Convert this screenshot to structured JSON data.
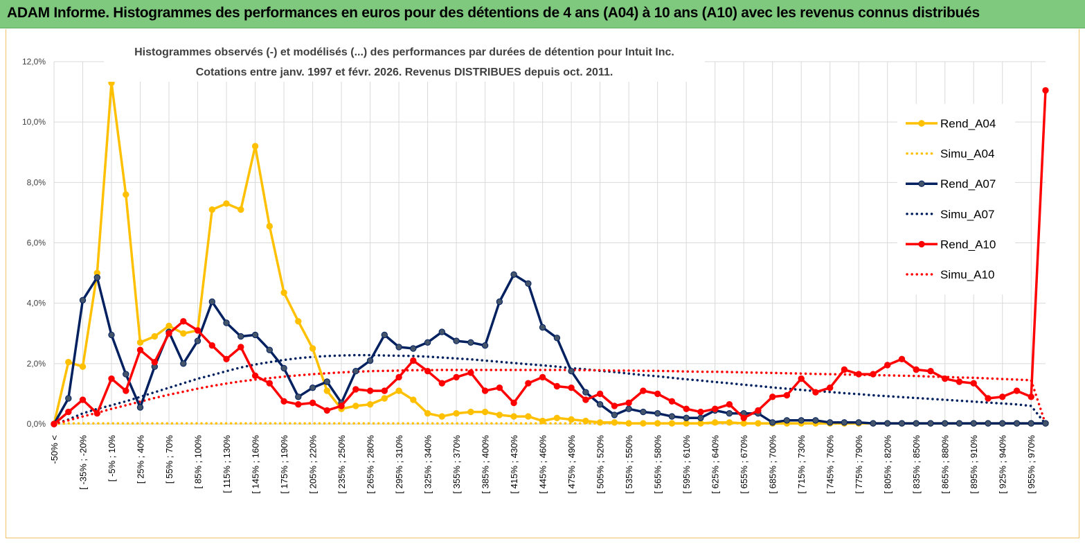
{
  "banner": {
    "title": "ADAM Informe. Histogrammes des performances en euros pour des détentions de 4 ans (A04) à 10 ans (A10) avec les revenus connus distribués"
  },
  "chart_data": {
    "type": "line",
    "title": [
      "Histogrammes observés (-) et modélisés (...) des performances par durées de détention pour Intuit Inc.",
      "Cotations entre janv. 1997 et févr. 2026. Revenus DISTRIBUES depuis oct. 2011."
    ],
    "ylim": [
      0,
      12
    ],
    "y_ticks": [
      "0,0%",
      "2,0%",
      "4,0%",
      "6,0%",
      "8,0%",
      "10,0%",
      "12,0%"
    ],
    "grid": true,
    "legend_position": "right",
    "x_labels": [
      "-50% <",
      "[ -35% ; -20%",
      "[ -5% ; 10%",
      "[ 25% ; 40%",
      "[ 55% ; 70%",
      "[ 85% ; 100%",
      "[ 115% ; 130%",
      "[ 145% ; 160%",
      "[ 175% ; 190%",
      "[ 205% ; 220%",
      "[ 235% ; 250%",
      "[ 265% ; 280%",
      "[ 295% ; 310%",
      "[ 325% ; 340%",
      "[ 355% ; 370%",
      "[ 385% ; 400%",
      "[ 415% ; 430%",
      "[ 445% ; 460%",
      "[ 475% ; 490%",
      "[ 505% ; 520%",
      "[ 535% ; 550%",
      "[ 565% ; 580%",
      "[ 595% ; 610%",
      "[ 625% ; 640%",
      "[ 655% ; 670%",
      "[ 685% ; 700%",
      "[ 715% ; 730%",
      "[ 745% ; 760%",
      "[ 775% ; 790%",
      "[ 805% ; 820%",
      "[ 835% ; 850%",
      "[ 865% ; 880%",
      "[ 895% ; 910%",
      "[ 925% ; 940%",
      "[ 955% ; 970%"
    ],
    "series": [
      {
        "name": "Rend_A04",
        "style": "solid",
        "color": "#ffc000",
        "values": [
          0,
          2.05,
          1.9,
          5.0,
          11.3,
          7.6,
          2.7,
          2.9,
          3.25,
          3.0,
          3.1,
          7.1,
          7.3,
          7.1,
          9.2,
          6.55,
          4.35,
          3.4,
          2.5,
          1.1,
          0.5,
          0.6,
          0.65,
          0.85,
          1.1,
          0.8,
          0.35,
          0.25,
          0.35,
          0.4,
          0.4,
          0.3,
          0.25,
          0.25,
          0.1,
          0.2,
          0.15,
          0.1,
          0.05,
          0.05,
          0.02,
          0.02,
          0.02,
          0.02,
          0.02,
          0.02,
          0.05,
          0.05,
          0.02,
          0.02,
          0.02,
          0.02,
          0.02,
          0.02,
          0.02,
          0.02,
          0.02,
          0.02,
          0.02,
          0.02,
          0.02,
          0.02,
          0.02,
          0.02,
          0.02,
          0.02,
          0.02,
          0.02,
          0.02,
          0.02
        ]
      },
      {
        "name": "Simu_A04",
        "style": "dotted",
        "color": "#ffc000",
        "values": [
          0,
          0.02,
          0.02,
          0.02,
          0.02,
          0.02,
          0.02,
          0.02,
          0.02,
          0.02,
          0.02,
          0.02,
          0.02,
          0.02,
          0.02,
          0.02,
          0.02,
          0.02,
          0.02,
          0.02,
          0.02,
          0.02,
          0.02,
          0.02,
          0.02,
          0.02,
          0.02,
          0.02,
          0.02,
          0.02,
          0.02,
          0.02,
          0.02,
          0.02,
          0.02,
          0.02,
          0.02,
          0.02,
          0.02,
          0.02,
          0.02,
          0.02,
          0.02,
          0.02,
          0.02,
          0.02,
          0.02,
          0.02,
          0.02,
          0.02,
          0.02,
          0.02,
          0.02,
          0.02,
          0.02,
          0.02,
          0.02,
          0.02,
          0.02,
          0.02,
          0.02,
          0.02,
          0.02,
          0.02,
          0.02,
          0.02,
          0.02,
          0.02,
          0.02,
          0.02
        ]
      },
      {
        "name": "Rend_A07",
        "style": "solid",
        "color": "#002060",
        "values": [
          0,
          0.85,
          4.1,
          4.85,
          2.95,
          1.65,
          0.55,
          1.9,
          3.05,
          2.0,
          2.75,
          4.05,
          3.35,
          2.9,
          2.95,
          2.45,
          1.85,
          0.9,
          1.2,
          1.4,
          0.7,
          1.75,
          2.1,
          2.95,
          2.55,
          2.5,
          2.7,
          3.05,
          2.75,
          2.7,
          2.6,
          4.05,
          4.95,
          4.65,
          3.2,
          2.85,
          1.75,
          1.05,
          0.65,
          0.3,
          0.5,
          0.4,
          0.35,
          0.25,
          0.2,
          0.2,
          0.45,
          0.35,
          0.35,
          0.35,
          0.05,
          0.12,
          0.12,
          0.12,
          0.05,
          0.05,
          0.05,
          0.02,
          0.02,
          0.02,
          0.02,
          0.02,
          0.02,
          0.02,
          0.02,
          0.02,
          0.02,
          0.02,
          0.02,
          0.02
        ]
      },
      {
        "name": "Simu_A07",
        "style": "dotted",
        "color": "#002060",
        "values": [
          0,
          0.15,
          0.35,
          0.5,
          0.62,
          0.75,
          0.9,
          1.05,
          1.2,
          1.35,
          1.5,
          1.62,
          1.75,
          1.87,
          1.97,
          2.05,
          2.12,
          2.18,
          2.22,
          2.25,
          2.27,
          2.28,
          2.28,
          2.27,
          2.26,
          2.25,
          2.23,
          2.2,
          2.17,
          2.14,
          2.1,
          2.06,
          2.02,
          1.98,
          1.94,
          1.9,
          1.85,
          1.81,
          1.76,
          1.72,
          1.67,
          1.62,
          1.58,
          1.53,
          1.48,
          1.44,
          1.39,
          1.35,
          1.3,
          1.26,
          1.21,
          1.17,
          1.13,
          1.09,
          1.06,
          1.02,
          0.99,
          0.95,
          0.92,
          0.89,
          0.86,
          0.83,
          0.8,
          0.77,
          0.74,
          0.71,
          0.68,
          0.65,
          0.6,
          0.0
        ]
      },
      {
        "name": "Rend_A10",
        "style": "solid",
        "color": "#ff0000",
        "values": [
          0,
          0.4,
          0.8,
          0.35,
          1.5,
          1.1,
          2.45,
          2.05,
          3.0,
          3.4,
          3.1,
          2.6,
          2.15,
          2.55,
          1.6,
          1.35,
          0.75,
          0.65,
          0.7,
          0.45,
          0.6,
          1.15,
          1.1,
          1.1,
          1.55,
          2.1,
          1.75,
          1.35,
          1.55,
          1.7,
          1.1,
          1.2,
          0.7,
          1.35,
          1.55,
          1.25,
          1.2,
          0.8,
          1.0,
          0.6,
          0.7,
          1.1,
          1.0,
          0.75,
          0.5,
          0.4,
          0.5,
          0.65,
          0.2,
          0.45,
          0.9,
          0.95,
          1.5,
          1.05,
          1.2,
          1.8,
          1.65,
          1.65,
          1.95,
          2.15,
          1.8,
          1.75,
          1.5,
          1.4,
          1.35,
          0.85,
          0.9,
          1.1,
          0.9,
          11.05
        ]
      },
      {
        "name": "Simu_A10",
        "style": "dotted",
        "color": "#ff0000",
        "values": [
          0,
          0.12,
          0.25,
          0.37,
          0.5,
          0.62,
          0.74,
          0.86,
          0.97,
          1.07,
          1.17,
          1.26,
          1.34,
          1.41,
          1.47,
          1.52,
          1.57,
          1.61,
          1.65,
          1.68,
          1.71,
          1.73,
          1.75,
          1.76,
          1.77,
          1.78,
          1.78,
          1.79,
          1.79,
          1.79,
          1.79,
          1.79,
          1.79,
          1.79,
          1.79,
          1.79,
          1.79,
          1.78,
          1.78,
          1.77,
          1.77,
          1.76,
          1.76,
          1.75,
          1.74,
          1.73,
          1.73,
          1.72,
          1.71,
          1.7,
          1.69,
          1.68,
          1.67,
          1.66,
          1.65,
          1.64,
          1.63,
          1.62,
          1.61,
          1.6,
          1.59,
          1.57,
          1.56,
          1.54,
          1.53,
          1.51,
          1.49,
          1.47,
          1.45,
          0.0
        ]
      }
    ]
  }
}
